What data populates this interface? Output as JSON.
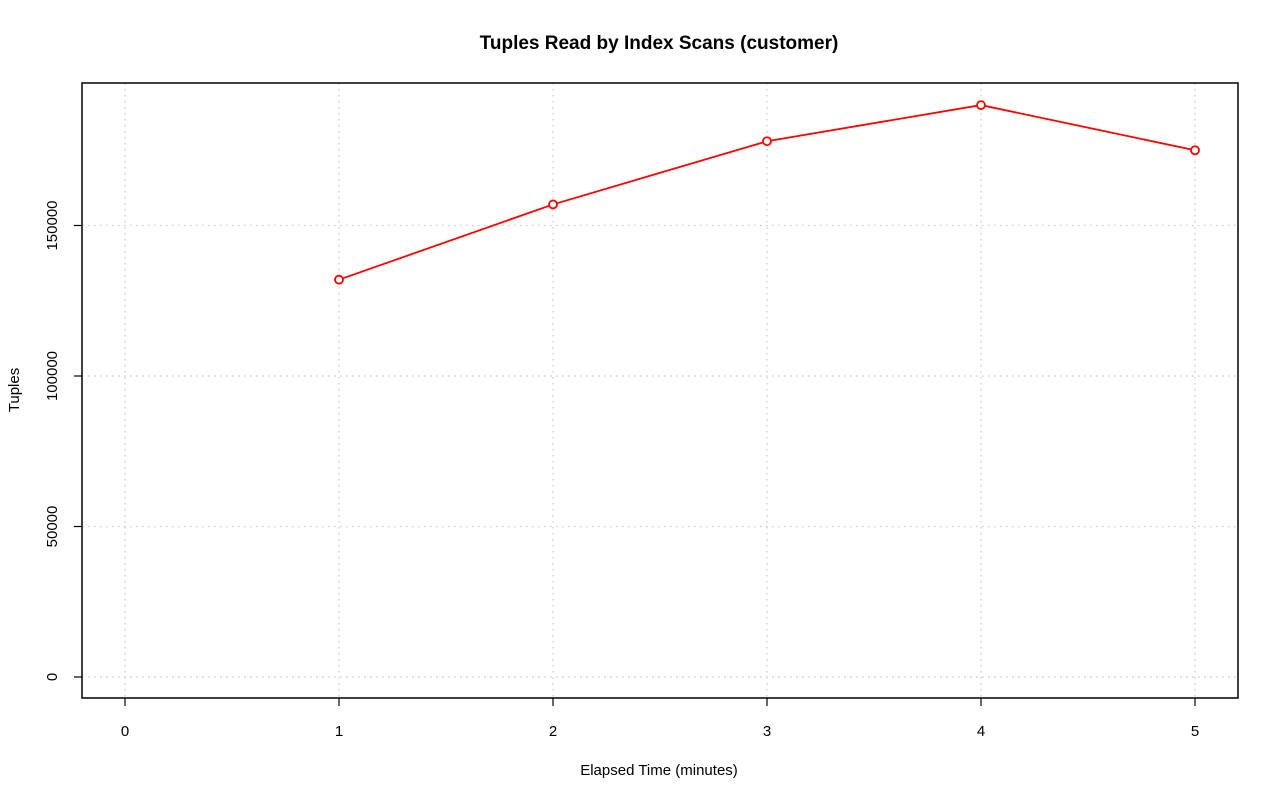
{
  "chart_data": {
    "type": "line",
    "title": "Tuples Read by Index Scans (customer)",
    "xlabel": "Elapsed Time (minutes)",
    "ylabel": "Tuples",
    "xlim": [
      0,
      5
    ],
    "ylim": [
      0,
      185000
    ],
    "x_ticks": [
      0,
      1,
      2,
      3,
      4,
      5
    ],
    "x_tick_labels": [
      "0",
      "1",
      "2",
      "3",
      "4",
      "5"
    ],
    "y_ticks": [
      0,
      50000,
      100000,
      150000
    ],
    "y_tick_labels": [
      "0",
      "50000",
      "100000",
      "150000"
    ],
    "grid": true,
    "legend": "none",
    "series": [
      {
        "color": "#ff0000",
        "x": [
          1,
          2,
          3,
          4,
          5
        ],
        "y": [
          132000,
          157000,
          178000,
          190000,
          175000
        ]
      }
    ]
  }
}
